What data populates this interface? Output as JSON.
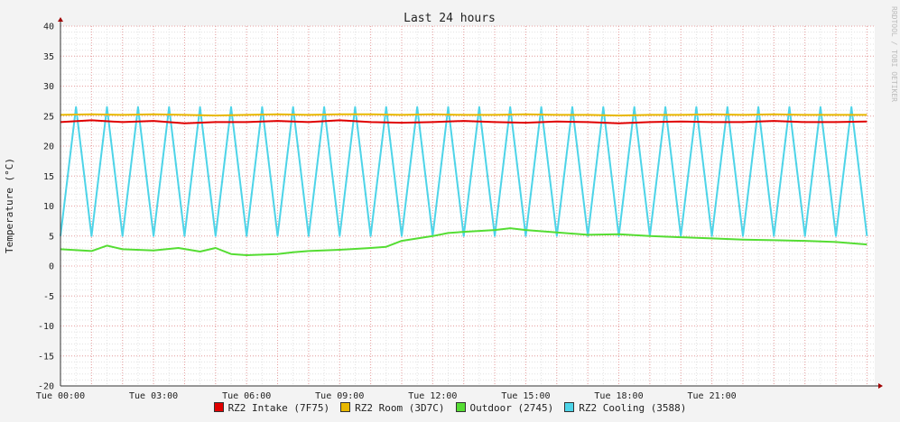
{
  "watermark": "RRDTOOL / TOBI OETIKER",
  "chart_data": {
    "type": "line",
    "title": "Last 24 hours",
    "ylabel": "Temperature (°C)",
    "xlabel": "",
    "ylim": [
      -20,
      40
    ],
    "yticks": [
      -20,
      -15,
      -10,
      -5,
      0,
      5,
      10,
      15,
      20,
      25,
      30,
      35,
      40
    ],
    "xlim": [
      0,
      26.25
    ],
    "xticks": [
      {
        "x": 0,
        "label": "Tue 00:00"
      },
      {
        "x": 3,
        "label": "Tue 03:00"
      },
      {
        "x": 6,
        "label": "Tue 06:00"
      },
      {
        "x": 9,
        "label": "Tue 09:00"
      },
      {
        "x": 12,
        "label": "Tue 12:00"
      },
      {
        "x": 15,
        "label": "Tue 15:00"
      },
      {
        "x": 18,
        "label": "Tue 18:00"
      },
      {
        "x": 21,
        "label": "Tue 21:00"
      }
    ],
    "grid": true,
    "legend_position": "bottom",
    "series": [
      {
        "name": "RZ2 Intake (7F75)",
        "color": "#e00000",
        "points": [
          [
            0.0,
            24.0
          ],
          [
            1.0,
            24.3
          ],
          [
            2.0,
            24.0
          ],
          [
            3.0,
            24.2
          ],
          [
            4.0,
            23.8
          ],
          [
            5.0,
            24.0
          ],
          [
            6.0,
            24.0
          ],
          [
            7.0,
            24.2
          ],
          [
            8.0,
            24.0
          ],
          [
            9.0,
            24.3
          ],
          [
            10.0,
            24.0
          ],
          [
            11.0,
            23.9
          ],
          [
            12.0,
            24.0
          ],
          [
            13.0,
            24.2
          ],
          [
            14.0,
            24.0
          ],
          [
            15.0,
            23.9
          ],
          [
            16.0,
            24.1
          ],
          [
            17.0,
            24.0
          ],
          [
            18.0,
            23.8
          ],
          [
            19.0,
            24.0
          ],
          [
            20.0,
            24.1
          ],
          [
            21.0,
            24.0
          ],
          [
            22.0,
            24.0
          ],
          [
            23.0,
            24.2
          ],
          [
            24.0,
            24.0
          ],
          [
            25.0,
            24.0
          ],
          [
            26.0,
            24.1
          ]
        ]
      },
      {
        "name": "RZ2 Room (3D7C)",
        "color": "#e8b800",
        "points": [
          [
            0.0,
            25.2
          ],
          [
            1.0,
            25.3
          ],
          [
            2.0,
            25.2
          ],
          [
            3.0,
            25.3
          ],
          [
            4.0,
            25.2
          ],
          [
            5.0,
            25.1
          ],
          [
            6.0,
            25.2
          ],
          [
            7.0,
            25.3
          ],
          [
            8.0,
            25.2
          ],
          [
            9.0,
            25.3
          ],
          [
            10.0,
            25.3
          ],
          [
            11.0,
            25.2
          ],
          [
            12.0,
            25.3
          ],
          [
            13.0,
            25.2
          ],
          [
            14.0,
            25.2
          ],
          [
            15.0,
            25.3
          ],
          [
            16.0,
            25.2
          ],
          [
            17.0,
            25.2
          ],
          [
            18.0,
            25.1
          ],
          [
            19.0,
            25.2
          ],
          [
            20.0,
            25.2
          ],
          [
            21.0,
            25.3
          ],
          [
            22.0,
            25.2
          ],
          [
            23.0,
            25.3
          ],
          [
            24.0,
            25.2
          ],
          [
            25.0,
            25.2
          ],
          [
            26.0,
            25.2
          ]
        ]
      },
      {
        "name": "Outdoor (2745)",
        "color": "#55dd33",
        "points": [
          [
            0.0,
            2.8
          ],
          [
            1.0,
            2.5
          ],
          [
            1.5,
            3.4
          ],
          [
            2.0,
            2.8
          ],
          [
            3.0,
            2.6
          ],
          [
            3.8,
            3.0
          ],
          [
            4.5,
            2.4
          ],
          [
            5.0,
            3.0
          ],
          [
            5.5,
            2.0
          ],
          [
            6.0,
            1.8
          ],
          [
            7.0,
            2.0
          ],
          [
            7.5,
            2.3
          ],
          [
            8.0,
            2.5
          ],
          [
            9.0,
            2.7
          ],
          [
            10.0,
            3.0
          ],
          [
            10.5,
            3.2
          ],
          [
            11.0,
            4.2
          ],
          [
            12.0,
            5.0
          ],
          [
            12.5,
            5.5
          ],
          [
            13.0,
            5.7
          ],
          [
            14.0,
            6.0
          ],
          [
            14.5,
            6.3
          ],
          [
            15.0,
            6.0
          ],
          [
            16.0,
            5.6
          ],
          [
            17.0,
            5.2
          ],
          [
            18.0,
            5.3
          ],
          [
            19.0,
            5.0
          ],
          [
            20.0,
            4.8
          ],
          [
            21.0,
            4.6
          ],
          [
            22.0,
            4.4
          ],
          [
            23.0,
            4.3
          ],
          [
            24.0,
            4.2
          ],
          [
            25.0,
            4.0
          ],
          [
            26.0,
            3.6
          ]
        ]
      },
      {
        "name": "RZ2 Cooling (3588)",
        "color": "#4dd4e8",
        "points": [
          [
            0.0,
            5.0
          ],
          [
            0.5,
            26.5
          ],
          [
            1.0,
            5.0
          ],
          [
            1.5,
            26.5
          ],
          [
            2.0,
            5.0
          ],
          [
            2.5,
            26.5
          ],
          [
            3.0,
            5.0
          ],
          [
            3.5,
            26.5
          ],
          [
            4.0,
            5.0
          ],
          [
            4.5,
            26.5
          ],
          [
            5.0,
            5.0
          ],
          [
            5.5,
            26.5
          ],
          [
            6.0,
            5.0
          ],
          [
            6.5,
            26.5
          ],
          [
            7.0,
            5.0
          ],
          [
            7.5,
            26.5
          ],
          [
            8.0,
            5.0
          ],
          [
            8.5,
            26.5
          ],
          [
            9.0,
            5.0
          ],
          [
            9.5,
            26.5
          ],
          [
            10.0,
            5.0
          ],
          [
            10.5,
            26.5
          ],
          [
            11.0,
            5.0
          ],
          [
            11.5,
            26.5
          ],
          [
            12.0,
            5.0
          ],
          [
            12.5,
            26.5
          ],
          [
            13.0,
            5.0
          ],
          [
            13.5,
            26.5
          ],
          [
            14.0,
            5.0
          ],
          [
            14.5,
            26.5
          ],
          [
            15.0,
            5.0
          ],
          [
            15.5,
            26.5
          ],
          [
            16.0,
            5.0
          ],
          [
            16.5,
            26.5
          ],
          [
            17.0,
            5.0
          ],
          [
            17.5,
            26.5
          ],
          [
            18.0,
            5.0
          ],
          [
            18.5,
            26.5
          ],
          [
            19.0,
            5.0
          ],
          [
            19.5,
            26.5
          ],
          [
            20.0,
            5.0
          ],
          [
            20.5,
            26.5
          ],
          [
            21.0,
            5.0
          ],
          [
            21.5,
            26.5
          ],
          [
            22.0,
            5.0
          ],
          [
            22.5,
            26.5
          ],
          [
            23.0,
            5.0
          ],
          [
            23.5,
            26.5
          ],
          [
            24.0,
            5.0
          ],
          [
            24.5,
            26.5
          ],
          [
            25.0,
            5.0
          ],
          [
            25.5,
            26.5
          ],
          [
            26.0,
            5.0
          ]
        ]
      }
    ]
  }
}
